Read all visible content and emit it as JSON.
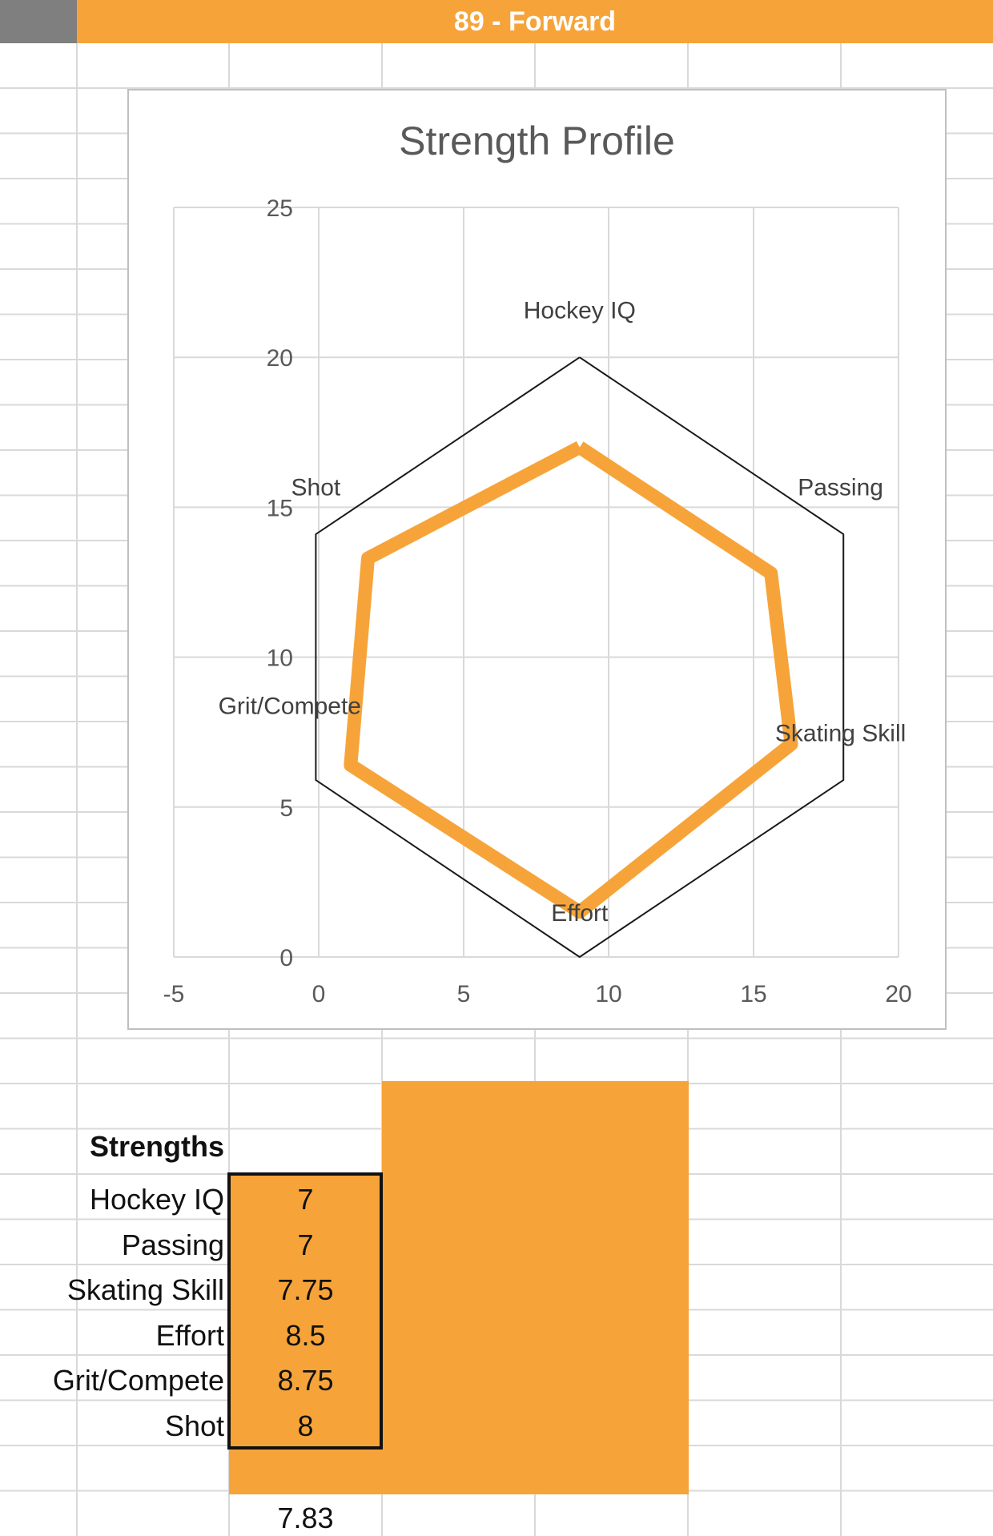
{
  "header": {
    "title": "89 - Forward"
  },
  "chart_data": {
    "type": "scatter",
    "title": "Strength Profile",
    "xlim": [
      -5,
      20
    ],
    "ylim": [
      0,
      25
    ],
    "x_ticks": [
      -5,
      0,
      5,
      10,
      15,
      20
    ],
    "y_ticks": [
      0,
      5,
      10,
      15,
      20,
      25
    ],
    "grid": true,
    "series": [
      {
        "points": [
          [
            9,
            20
          ],
          [
            18.1,
            14.1
          ],
          [
            18.1,
            5.9
          ],
          [
            9,
            0
          ],
          [
            -0.1,
            5.9
          ],
          [
            -0.1,
            14.1
          ],
          [
            9,
            20
          ]
        ],
        "color": "#1a1a1a"
      },
      {
        "points": [
          [
            9,
            17
          ],
          [
            15.6,
            12.8
          ],
          [
            16.3,
            7.1
          ],
          [
            9,
            1.5
          ],
          [
            1.1,
            6.4
          ],
          [
            1.7,
            13.3
          ],
          [
            9,
            17
          ]
        ],
        "color": "#f6a43a"
      }
    ],
    "annotations": [
      {
        "text": "Hockey IQ",
        "x": 9,
        "y": 21.3
      },
      {
        "text": "Passing",
        "x": 18,
        "y": 15.4
      },
      {
        "text": "Skating Skill",
        "x": 18,
        "y": 7.2
      },
      {
        "text": "Effort",
        "x": 9,
        "y": 1.2
      },
      {
        "text": "Grit/Compete",
        "x": -1,
        "y": 8.1
      },
      {
        "text": "Shot",
        "x": -0.1,
        "y": 15.4
      }
    ]
  },
  "strengths": {
    "heading": "Strengths",
    "rows": [
      {
        "label": "Hockey IQ",
        "value": "7"
      },
      {
        "label": "Passing",
        "value": "7"
      },
      {
        "label": "Skating Skill",
        "value": "7.75"
      },
      {
        "label": "Effort",
        "value": "8.5"
      },
      {
        "label": "Grit/Compete",
        "value": "8.75"
      },
      {
        "label": "Shot",
        "value": "8"
      }
    ],
    "average": "7.83"
  }
}
